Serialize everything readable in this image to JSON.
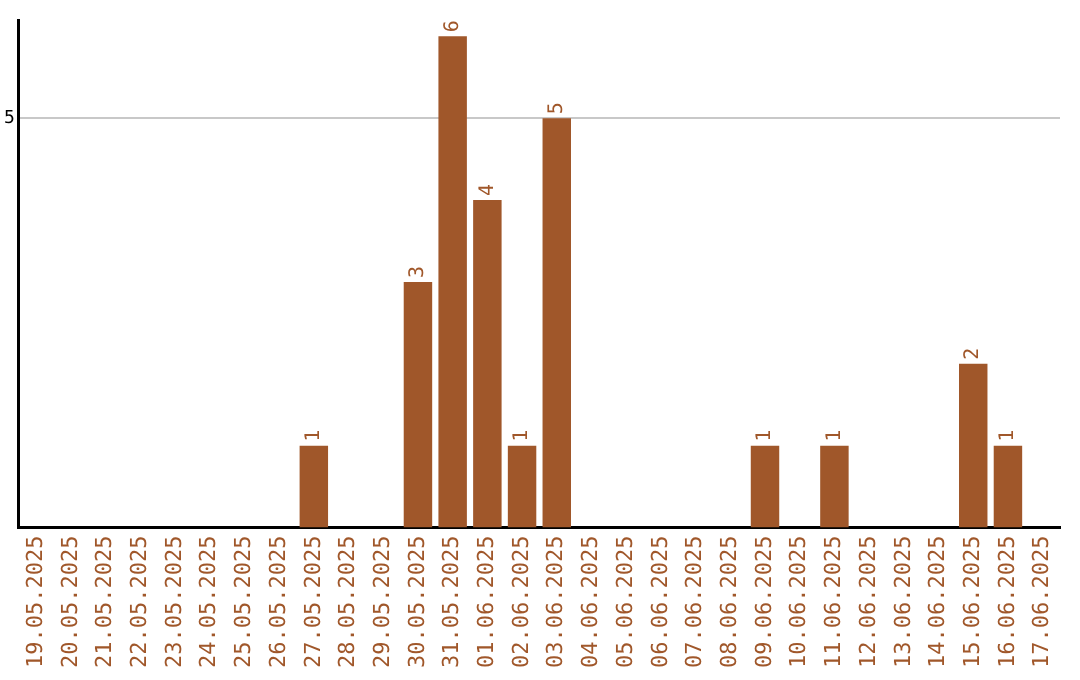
{
  "chart_data": {
    "type": "bar",
    "categories": [
      "19.05.2025",
      "20.05.2025",
      "21.05.2025",
      "22.05.2025",
      "23.05.2025",
      "24.05.2025",
      "25.05.2025",
      "26.05.2025",
      "27.05.2025",
      "28.05.2025",
      "29.05.2025",
      "30.05.2025",
      "31.05.2025",
      "01.06.2025",
      "02.06.2025",
      "03.06.2025",
      "04.06.2025",
      "05.06.2025",
      "06.06.2025",
      "07.06.2025",
      "08.06.2025",
      "09.06.2025",
      "10.06.2025",
      "11.06.2025",
      "12.06.2025",
      "13.06.2025",
      "14.06.2025",
      "15.06.2025",
      "16.06.2025",
      "17.06.2025"
    ],
    "values": [
      0,
      0,
      0,
      0,
      0,
      0,
      0,
      0,
      1,
      0,
      0,
      3,
      6,
      4,
      1,
      5,
      0,
      0,
      0,
      0,
      0,
      1,
      0,
      1,
      0,
      0,
      0,
      2,
      1,
      0
    ],
    "value_labels": [
      null,
      null,
      null,
      null,
      null,
      null,
      null,
      null,
      "1",
      null,
      null,
      "3",
      "6",
      "4",
      "1",
      "5",
      null,
      null,
      null,
      null,
      null,
      "1",
      null,
      "1",
      null,
      null,
      null,
      "2",
      "1",
      null
    ],
    "color": "#a0572a",
    "ylim": [
      0,
      6.2
    ],
    "yticks": [
      5
    ],
    "grid": "y",
    "legend": false
  }
}
